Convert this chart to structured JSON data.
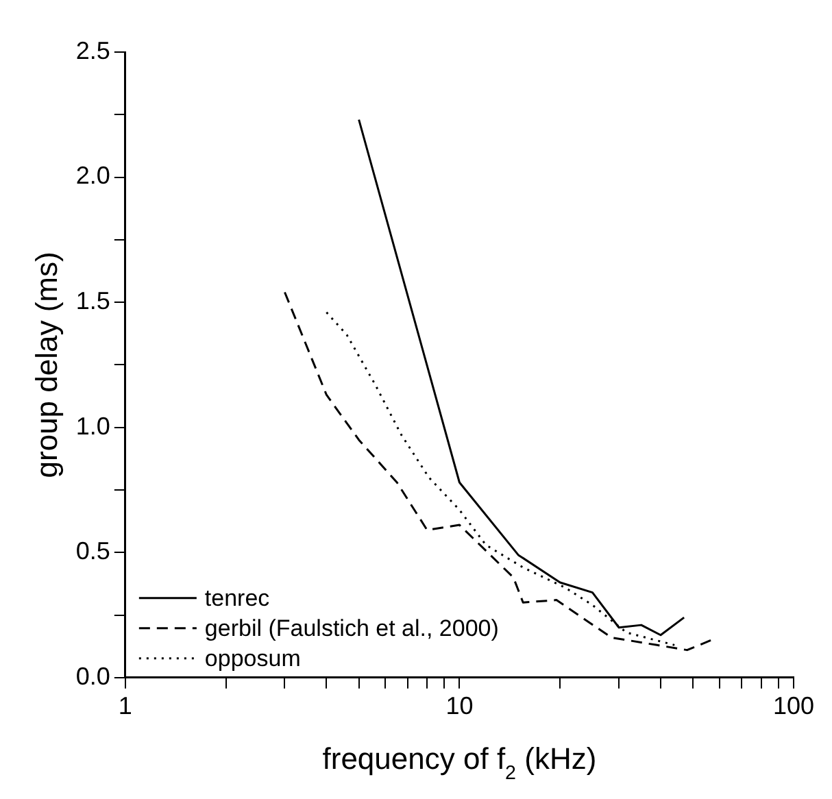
{
  "chart_data": {
    "type": "line",
    "xlabel": "frequency of f$_{2}$ (kHz)",
    "ylabel": "group delay (ms)",
    "log": "x",
    "grid": false,
    "legend": "bottom left",
    "marker": "none",
    "xlim": [
      1,
      100
    ],
    "ylim": [
      0,
      2.5
    ],
    "xticks": [
      1,
      {
        "value": 2,
        "label": null
      },
      {
        "value": 3,
        "label": null
      },
      {
        "value": 4,
        "label": null
      },
      {
        "value": 5,
        "label": null
      },
      {
        "value": 6,
        "label": null
      },
      {
        "value": 7,
        "label": null
      },
      {
        "value": 8,
        "label": null
      },
      {
        "value": 9,
        "label": null
      },
      10,
      {
        "value": 20,
        "label": null
      },
      {
        "value": 30,
        "label": null
      },
      {
        "value": 40,
        "label": null
      },
      {
        "value": 50,
        "label": null
      },
      {
        "value": 60,
        "label": null
      },
      {
        "value": 70,
        "label": null
      },
      {
        "value": 80,
        "label": null
      },
      {
        "value": 90,
        "label": null
      },
      100
    ],
    "yticks": [
      {
        "value": 0,
        "label": "0.0"
      },
      {
        "value": 0.25,
        "label": null
      },
      {
        "value": 0.5,
        "label": "0.5"
      },
      {
        "value": 0.75,
        "label": null
      },
      {
        "value": 1,
        "label": "1.0"
      },
      {
        "value": 1.25,
        "label": null
      },
      {
        "value": 1.5,
        "label": "1.5"
      },
      {
        "value": 1.75,
        "label": null
      },
      {
        "value": 2,
        "label": "2.0"
      },
      {
        "value": 2.25,
        "label": null
      },
      {
        "value": 2.5,
        "label": "2.5"
      }
    ],
    "series": [
      {
        "name": "tenrec",
        "color": "#000000",
        "line_style": "solid",
        "x": [
          5,
          10,
          15,
          20,
          25,
          30,
          35,
          40,
          47
        ],
        "values": [
          2.23,
          0.78,
          0.49,
          0.38,
          0.34,
          0.2,
          0.21,
          0.17,
          0.24
        ]
      },
      {
        "name": "gerbil (Faulstich et al., 2000)",
        "color": "#000000",
        "line_style": "dashed",
        "x": [
          3,
          4,
          5,
          6.5,
          8,
          10,
          14.5,
          15.5,
          19.5,
          28.5,
          39,
          48,
          58
        ],
        "values": [
          1.54,
          1.13,
          0.95,
          0.78,
          0.59,
          0.61,
          0.4,
          0.3,
          0.31,
          0.16,
          0.13,
          0.11,
          0.155
        ]
      },
      {
        "name": "opposum",
        "color": "#000000",
        "line_style": "dotted",
        "x": [
          4,
          4.6,
          5.6,
          6.7,
          8.1,
          10,
          12,
          15.5,
          20.7,
          25,
          31.6,
          44
        ],
        "values": [
          1.46,
          1.37,
          1.17,
          0.97,
          0.8,
          0.67,
          0.53,
          0.44,
          0.36,
          0.29,
          0.18,
          0.13
        ]
      }
    ]
  }
}
